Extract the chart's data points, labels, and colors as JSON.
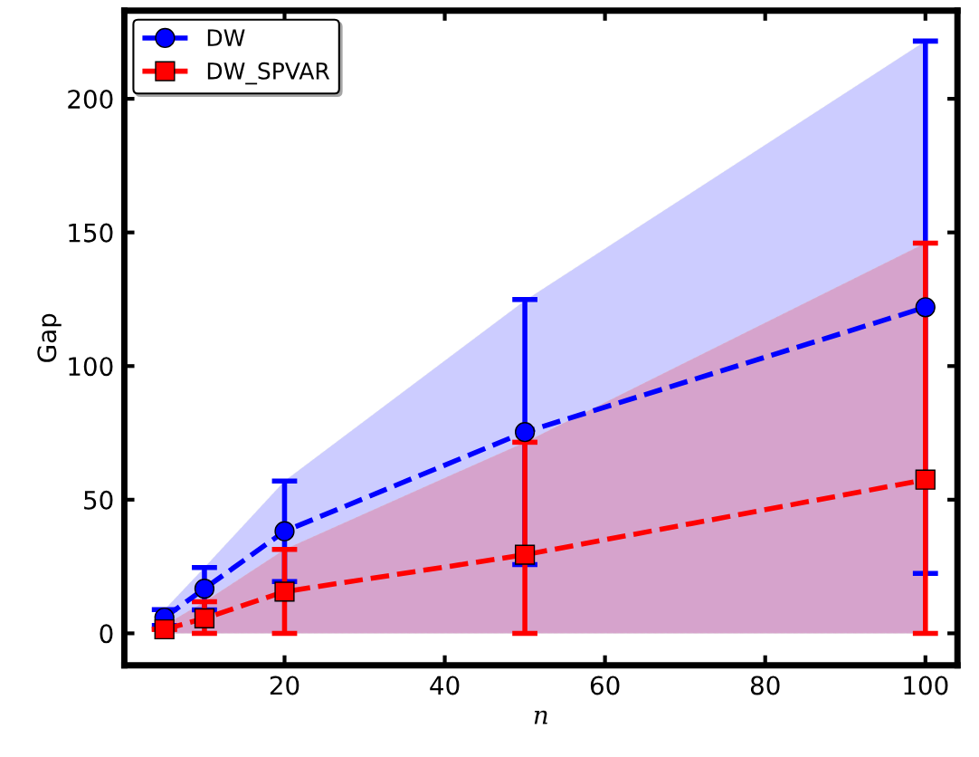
{
  "chart_data": {
    "type": "line",
    "xlabel": "n",
    "ylabel": "Gap",
    "x": [
      5,
      10,
      20,
      50,
      100
    ],
    "series": [
      {
        "name": "DW",
        "color": "#0000ff",
        "values": [
          5.9,
          16.7,
          38.2,
          75.3,
          122
        ],
        "errors": [
          3,
          7.9,
          18.8,
          49.6,
          99.6
        ],
        "lower": [
          0,
          0,
          0,
          0,
          0
        ],
        "upper": [
          8.8,
          24.6,
          57.0,
          124.5,
          221.6
        ],
        "marker": "circle"
      },
      {
        "name": "DW_SPVAR",
        "color": "#ff0000",
        "values": [
          1.5,
          5.6,
          15.6,
          29.4,
          57.5
        ],
        "errors": [
          null,
          [
            0,
            11.8
          ],
          [
            0,
            31.4
          ],
          [
            0,
            71.5
          ],
          [
            0,
            146
          ]
        ],
        "lower": [
          0,
          0,
          0,
          0,
          0
        ],
        "upper": [
          3,
          11.8,
          31.4,
          71.5,
          146
        ],
        "marker": "square"
      }
    ],
    "xlim": [
      0,
      104
    ],
    "xticks": [
      {
        "value": 0,
        "label": null
      },
      20,
      40,
      60,
      80,
      100
    ],
    "ylim": [
      -12,
      233
    ],
    "yticks": [
      0,
      50,
      100,
      150,
      200
    ],
    "line_style": "dashed",
    "grid": false,
    "legend": "top left"
  }
}
